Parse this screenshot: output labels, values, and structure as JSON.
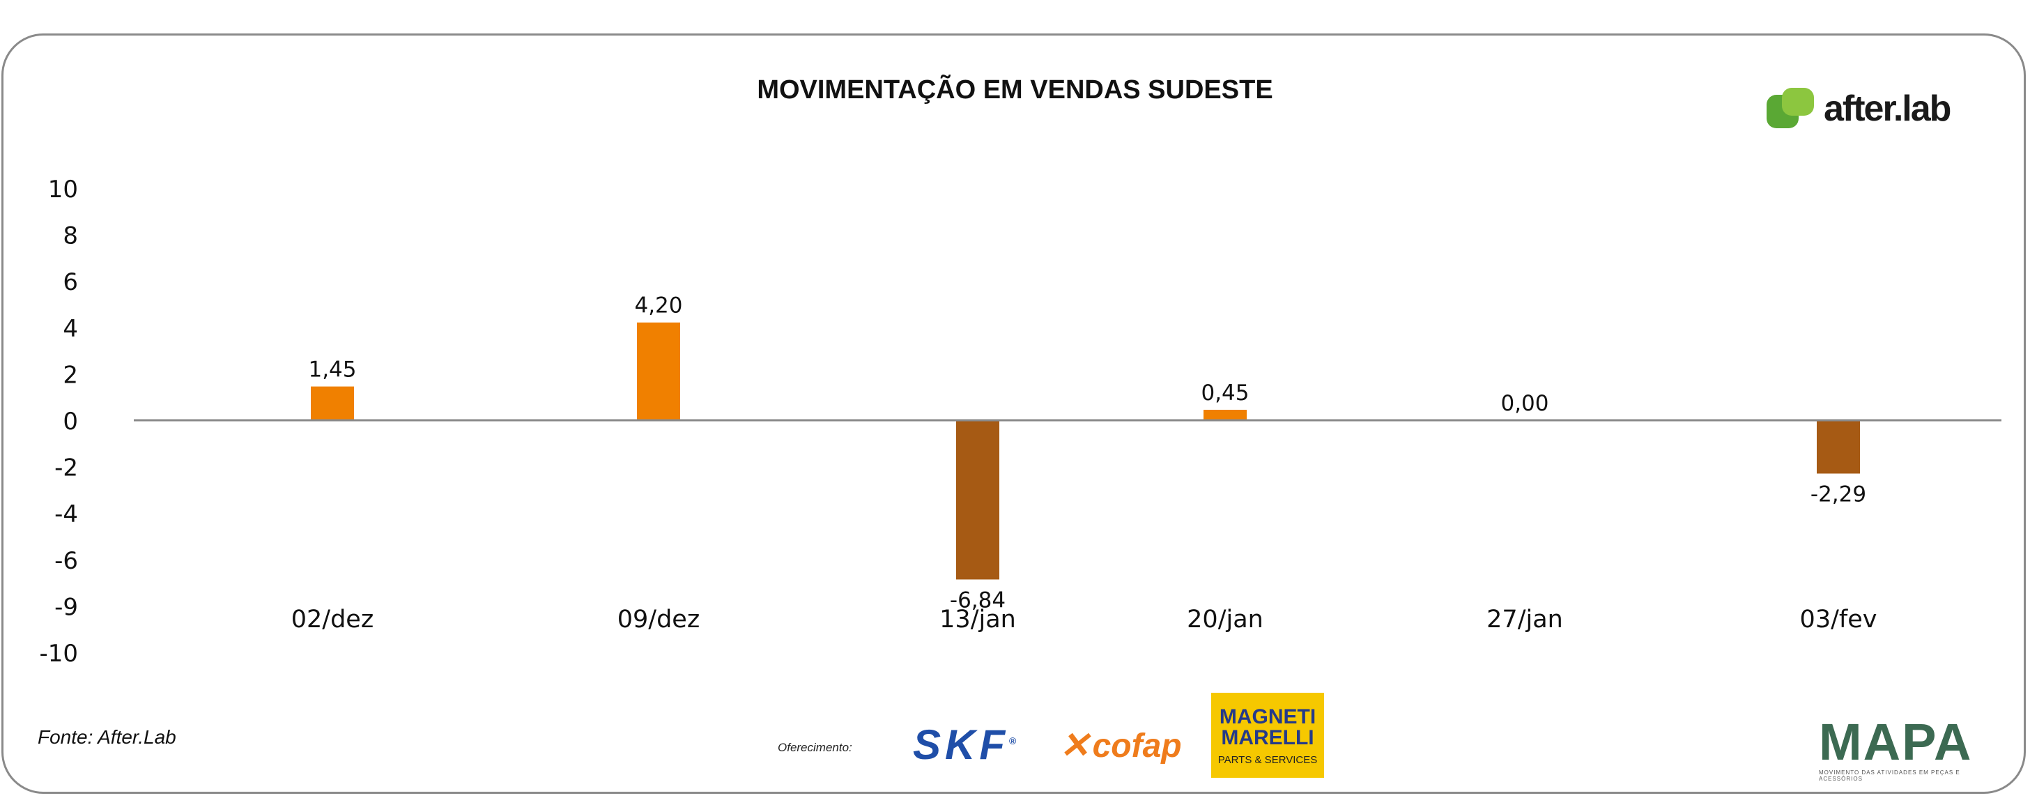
{
  "title": "MOVIMENTAÇÃO EM VENDAS SUDESTE",
  "logo": {
    "brand": "after.lab",
    "colors": [
      "#5aa834",
      "#8cc63f"
    ]
  },
  "source": "Fonte: After.Lab",
  "sponsors": {
    "label": "Oferecimento:",
    "skf": "SKF",
    "cofap": "cofap",
    "magneti_line1": "MAGNETI",
    "magneti_line2": "MARELLI",
    "magneti_sub": "PARTS & SERVICES",
    "mapa": "MAPA",
    "mapa_sub": "MOVIMENTO DAS ATIVIDADES EM PEÇAS E ACESSÓRIOS"
  },
  "chart_data": {
    "type": "bar",
    "title": "MOVIMENTAÇÃO EM VENDAS SUDESTE",
    "categories": [
      "02/dez",
      "09/dez",
      "13/jan",
      "20/jan",
      "27/jan",
      "03/fev"
    ],
    "values": [
      1.45,
      4.2,
      -6.84,
      0.45,
      0.0,
      -2.29
    ],
    "value_labels": [
      "1,45",
      "4,20",
      "-6,84",
      "0,45",
      "0,00",
      "-2,29"
    ],
    "y_ticks": [
      "10",
      "8",
      "6",
      "4",
      "2",
      "0",
      "-2",
      "-4",
      "-6",
      "-9",
      "-10"
    ],
    "positive_color": "#f08000",
    "negative_color": "#a65a14",
    "axis_color": "#8a8a8a",
    "grid": false,
    "legend": "none"
  }
}
